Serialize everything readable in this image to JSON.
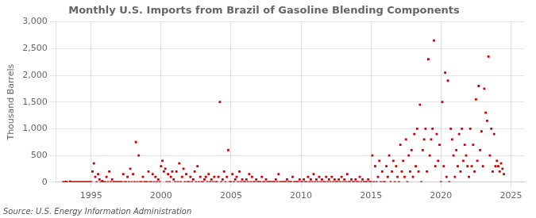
{
  "chart_data": {
    "type": "scatter",
    "title": "Monthly U.S. Imports from Brazil of Gasoline Blending Components",
    "ylabel": "Thousand Barrels",
    "source": "Source: U.S. Energy Information Administration",
    "color": "#cc0000",
    "marker": "square",
    "grid": true,
    "xlim": [
      1992.5,
      2026.0
    ],
    "xticks": [
      1995,
      2000,
      2005,
      2010,
      2015,
      2020,
      2025
    ],
    "ylim": [
      0,
      3000
    ],
    "yticks": [
      0,
      500,
      {
        "value": 1000,
        "label": "1,000"
      },
      {
        "value": 1500,
        "label": "1,500"
      },
      {
        "value": 2000,
        "label": "2,000"
      },
      {
        "value": 2500,
        "label": "2,500"
      },
      {
        "value": 3000,
        "label": "3,000"
      }
    ],
    "x": [
      1993.0,
      1993.1,
      1993.2,
      1993.3,
      1993.5,
      1993.6,
      1993.7,
      1993.8,
      1993.9,
      1994.0,
      1994.1,
      1994.2,
      1994.3,
      1994.4,
      1994.5,
      1994.6,
      1994.7,
      1994.8,
      1994.9,
      1995.0,
      1995.1,
      1995.2,
      1995.3,
      1995.4,
      1995.5,
      1995.6,
      1995.7,
      1995.8,
      1995.9,
      1996.0,
      1996.1,
      1996.2,
      1996.3,
      1996.4,
      1996.5,
      1996.6,
      1996.7,
      1996.8,
      1996.9,
      1997.0,
      1997.1,
      1997.2,
      1997.3,
      1997.4,
      1997.5,
      1997.6,
      1997.7,
      1997.8,
      1997.9,
      1998.0,
      1998.1,
      1998.2,
      1998.3,
      1998.4,
      1998.5,
      1998.6,
      1998.7,
      1998.8,
      1998.9,
      1999.0,
      1999.1,
      1999.2,
      1999.3,
      1999.4,
      1999.5,
      1999.6,
      1999.7,
      1999.8,
      1999.9,
      2000.0,
      2000.1,
      2000.2,
      2000.3,
      2000.4,
      2000.5,
      2000.6,
      2000.7,
      2000.8,
      2000.9,
      2001.0,
      2001.1,
      2001.2,
      2001.3,
      2001.4,
      2001.5,
      2001.6,
      2001.7,
      2001.8,
      2001.9,
      2002.0,
      2002.1,
      2002.2,
      2002.3,
      2002.4,
      2002.5,
      2002.6,
      2002.7,
      2002.8,
      2002.9,
      2003.0,
      2003.1,
      2003.2,
      2003.3,
      2003.4,
      2003.5,
      2003.6,
      2003.7,
      2003.8,
      2003.9,
      2004.0,
      2004.1,
      2004.2,
      2004.3,
      2004.4,
      2004.5,
      2004.6,
      2004.7,
      2004.8,
      2004.9,
      2005.0,
      2005.1,
      2005.2,
      2005.3,
      2005.4,
      2005.5,
      2005.6,
      2005.7,
      2005.8,
      2005.9,
      2006.0,
      2006.1,
      2006.2,
      2006.3,
      2006.4,
      2006.5,
      2006.6,
      2006.7,
      2006.8,
      2006.9,
      2007.0,
      2007.1,
      2007.2,
      2007.3,
      2007.4,
      2007.5,
      2007.6,
      2007.7,
      2007.8,
      2007.9,
      2008.0,
      2008.1,
      2008.2,
      2008.3,
      2008.4,
      2008.5,
      2008.6,
      2008.7,
      2008.8,
      2008.9,
      2009.0,
      2009.1,
      2009.2,
      2009.3,
      2009.4,
      2009.5,
      2009.6,
      2009.7,
      2009.8,
      2009.9,
      2010.0,
      2010.1,
      2010.2,
      2010.3,
      2010.4,
      2010.5,
      2010.6,
      2010.7,
      2010.8,
      2010.9,
      2011.0,
      2011.1,
      2011.2,
      2011.3,
      2011.4,
      2011.5,
      2011.6,
      2011.7,
      2011.8,
      2011.9,
      2012.0,
      2012.1,
      2012.2,
      2012.3,
      2012.4,
      2012.5,
      2012.6,
      2012.7,
      2012.8,
      2012.9,
      2013.0,
      2013.1,
      2013.2,
      2013.3,
      2013.4,
      2013.5,
      2013.6,
      2013.7,
      2013.8,
      2013.9,
      2014.0,
      2014.1,
      2014.2,
      2014.3,
      2014.4,
      2014.5,
      2014.6,
      2014.7,
      2014.8,
      2014.9,
      2015.0,
      2015.1,
      2015.2,
      2015.3,
      2015.4,
      2015.5,
      2015.6,
      2015.7,
      2015.8,
      2015.9,
      2016.0,
      2016.1,
      2016.2,
      2016.3,
      2016.4,
      2016.5,
      2016.6,
      2016.7,
      2016.8,
      2016.9,
      2017.0,
      2017.1,
      2017.2,
      2017.3,
      2017.4,
      2017.5,
      2017.6,
      2017.7,
      2017.8,
      2017.9,
      2018.0,
      2018.1,
      2018.2,
      2018.3,
      2018.4,
      2018.5,
      2018.6,
      2018.7,
      2018.8,
      2018.9,
      2019.0,
      2019.1,
      2019.2,
      2019.3,
      2019.4,
      2019.5,
      2019.6,
      2019.7,
      2019.8,
      2019.9,
      2020.0,
      2020.1,
      2020.2,
      2020.3,
      2020.4,
      2020.5,
      2020.6,
      2020.7,
      2020.8,
      2020.9,
      2021.0,
      2021.1,
      2021.2,
      2021.3,
      2021.4,
      2021.5,
      2021.6,
      2021.7,
      2021.8,
      2021.9,
      2022.0,
      2022.1,
      2022.2,
      2022.3,
      2022.4,
      2022.5,
      2022.6,
      2022.7,
      2022.8,
      2022.9,
      2023.0,
      2023.1,
      2023.2,
      2023.3,
      2023.4,
      2023.5,
      2023.6,
      2023.7,
      2023.8,
      2023.9,
      2024.0,
      2024.1,
      2024.2,
      2024.3,
      2024.4,
      2024.5
    ],
    "values": [
      0,
      0,
      5,
      0,
      10,
      0,
      0,
      0,
      0,
      0,
      0,
      0,
      0,
      0,
      0,
      0,
      0,
      0,
      0,
      0,
      200,
      350,
      100,
      0,
      150,
      50,
      0,
      20,
      0,
      0,
      100,
      0,
      200,
      0,
      50,
      0,
      0,
      0,
      0,
      0,
      0,
      0,
      150,
      0,
      0,
      100,
      0,
      250,
      0,
      150,
      0,
      750,
      0,
      500,
      0,
      0,
      100,
      0,
      0,
      0,
      200,
      0,
      0,
      150,
      0,
      100,
      0,
      50,
      0,
      300,
      400,
      200,
      250,
      0,
      150,
      0,
      100,
      200,
      50,
      0,
      200,
      0,
      350,
      0,
      100,
      250,
      0,
      150,
      0,
      0,
      100,
      0,
      50,
      200,
      0,
      300,
      0,
      100,
      0,
      0,
      50,
      100,
      0,
      150,
      0,
      50,
      0,
      100,
      0,
      0,
      100,
      1500,
      0,
      50,
      200,
      0,
      100,
      600,
      0,
      0,
      150,
      0,
      50,
      100,
      0,
      200,
      0,
      50,
      0,
      0,
      50,
      0,
      150,
      0,
      100,
      0,
      0,
      50,
      0,
      0,
      0,
      100,
      0,
      0,
      50,
      0,
      0,
      0,
      0,
      0,
      0,
      50,
      0,
      150,
      0,
      0,
      0,
      0,
      0,
      50,
      0,
      0,
      0,
      100,
      0,
      0,
      0,
      0,
      50,
      0,
      0,
      50,
      0,
      0,
      100,
      0,
      50,
      0,
      150,
      0,
      50,
      0,
      100,
      0,
      50,
      0,
      0,
      100,
      0,
      50,
      0,
      100,
      0,
      50,
      0,
      0,
      50,
      0,
      100,
      0,
      50,
      0,
      150,
      0,
      0,
      50,
      0,
      0,
      50,
      0,
      0,
      100,
      0,
      50,
      0,
      0,
      0,
      50,
      0,
      0,
      500,
      0,
      300,
      0,
      100,
      400,
      0,
      200,
      0,
      0,
      300,
      100,
      500,
      0,
      200,
      400,
      0,
      300,
      100,
      0,
      700,
      200,
      400,
      100,
      800,
      0,
      500,
      200,
      600,
      100,
      900,
      300,
      1000,
      200,
      1450,
      0,
      600,
      800,
      1000,
      200,
      2300,
      500,
      800,
      1000,
      2650,
      300,
      900,
      400,
      700,
      0,
      1500,
      300,
      2050,
      100,
      1900,
      0,
      1000,
      800,
      500,
      100,
      600,
      300,
      900,
      200,
      1000,
      400,
      700,
      500,
      300,
      100,
      1000,
      300,
      700,
      200,
      1550,
      400,
      1800,
      600,
      950,
      300,
      1750,
      1300,
      1150,
      2350,
      500,
      1000,
      200,
      900,
      300,
      400,
      300,
      200,
      350,
      250,
      150
    ]
  }
}
